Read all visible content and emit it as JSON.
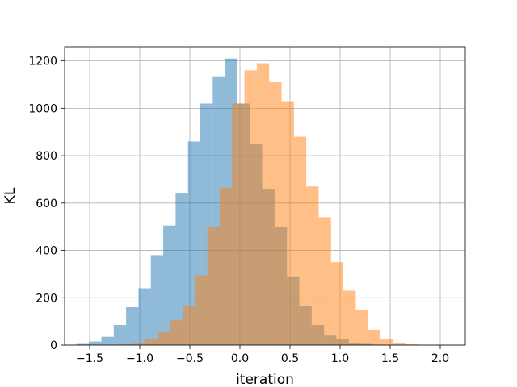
{
  "chart_data": {
    "type": "bar",
    "title": "",
    "xlabel": "iteration",
    "ylabel": "KL",
    "xlim": [
      -1.75,
      2.25
    ],
    "ylim": [
      0,
      1260
    ],
    "xticks": [
      -1.5,
      -1.0,
      -0.5,
      0.0,
      0.5,
      1.0,
      1.5,
      2.0
    ],
    "xtick_labels": [
      "−1.5",
      "−1.0",
      "−0.5",
      "0.0",
      "0.5",
      "1.0",
      "1.5",
      "2.0"
    ],
    "yticks": [
      0,
      200,
      400,
      600,
      800,
      1000,
      1200
    ],
    "ytick_labels": [
      "0",
      "200",
      "400",
      "600",
      "800",
      "1000",
      "1200"
    ],
    "grid": true,
    "legend": "none",
    "series": [
      {
        "color": "#1f77b4",
        "opacity": 0.5,
        "bin_start": -1.63,
        "bin_width": 0.1235,
        "values": [
          5,
          15,
          35,
          85,
          160,
          240,
          380,
          505,
          640,
          860,
          1020,
          1135,
          1210,
          1020,
          850,
          660,
          500,
          290,
          165,
          85,
          40,
          25,
          10,
          5,
          2
        ]
      },
      {
        "color": "#ff7f0e",
        "opacity": 0.5,
        "bin_start": -1.19,
        "bin_width": 0.1235,
        "values": [
          3,
          8,
          25,
          55,
          105,
          165,
          295,
          500,
          665,
          1020,
          1160,
          1190,
          1110,
          1030,
          880,
          670,
          540,
          350,
          230,
          150,
          65,
          25,
          10,
          3
        ]
      }
    ]
  }
}
